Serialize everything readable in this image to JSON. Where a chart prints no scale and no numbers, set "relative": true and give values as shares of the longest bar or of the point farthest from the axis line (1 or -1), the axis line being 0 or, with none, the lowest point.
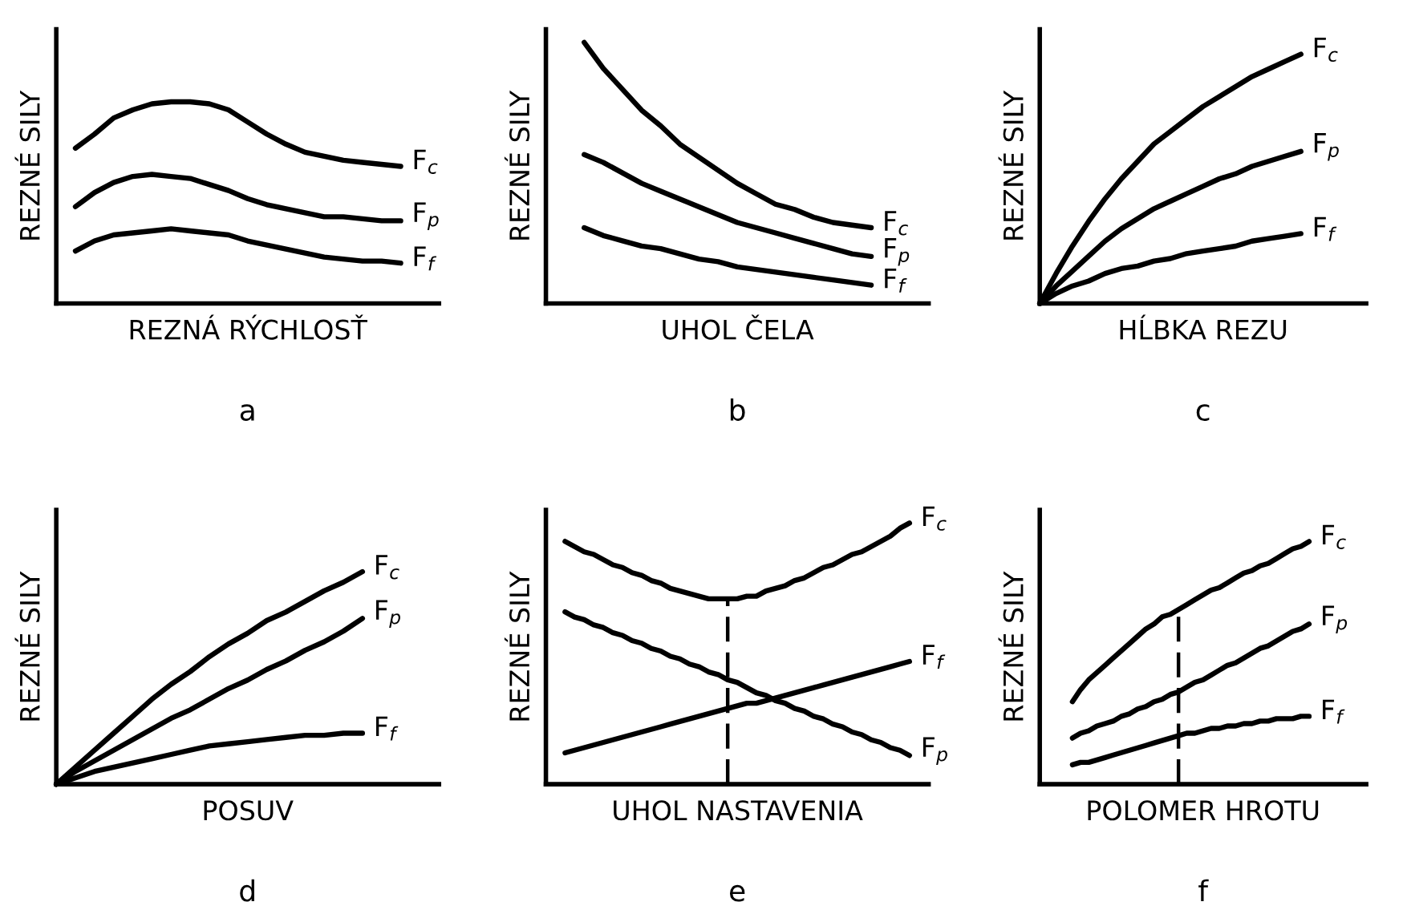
{
  "chart_data": [
    {
      "type": "line",
      "title": "a",
      "xlabel": "REZNÁ RÝCHLOSŤ",
      "ylabel": "REZNÉ SILY",
      "relative": true,
      "categories": [
        null,
        null,
        null,
        null,
        null,
        null,
        null,
        null,
        null,
        null,
        null,
        null,
        null,
        null,
        null,
        null,
        null,
        null,
        null,
        null,
        null
      ],
      "series": [
        {
          "name": "F$_{c}$",
          "color": "#000000",
          "values": [
            null,
            0.77,
            0.84,
            0.92,
            0.96,
            0.99,
            1.0,
            1.0,
            0.99,
            0.96,
            0.9,
            0.84,
            0.79,
            0.75,
            0.73,
            0.71,
            0.7,
            0.69,
            0.68,
            null,
            null
          ]
        },
        {
          "name": "F$_{p}$",
          "color": "#000000",
          "values": [
            null,
            0.48,
            0.55,
            0.6,
            0.63,
            0.64,
            0.63,
            0.62,
            0.59,
            0.56,
            0.52,
            0.49,
            0.47,
            0.45,
            0.43,
            0.43,
            0.42,
            0.41,
            0.41,
            null,
            null
          ]
        },
        {
          "name": "F$_{f}$",
          "color": "#000000",
          "values": [
            null,
            0.26,
            0.31,
            0.34,
            0.35,
            0.36,
            0.37,
            0.36,
            0.35,
            0.34,
            0.31,
            0.29,
            0.27,
            0.25,
            0.23,
            0.22,
            0.21,
            0.21,
            0.2,
            null,
            null
          ]
        }
      ]
    },
    {
      "type": "line",
      "title": "b",
      "xlabel": "UHOL ČELA",
      "ylabel": "REZNÉ SILY",
      "relative": true,
      "categories": [
        null,
        null,
        null,
        null,
        null,
        null,
        null,
        null,
        null,
        null,
        null,
        null,
        null,
        null,
        null,
        null,
        null,
        null,
        null,
        null,
        null
      ],
      "series": [
        {
          "name": "F$_{c}$",
          "color": "#000000",
          "values": [
            null,
            null,
            1.0,
            0.9,
            0.82,
            0.74,
            0.68,
            0.61,
            0.56,
            0.51,
            0.46,
            0.42,
            0.38,
            0.36,
            0.33,
            0.31,
            0.3,
            0.29,
            null,
            null,
            null
          ]
        },
        {
          "name": "F$_{p}$",
          "color": "#000000",
          "values": [
            null,
            null,
            0.57,
            0.54,
            0.5,
            0.46,
            0.43,
            0.4,
            0.37,
            0.34,
            0.31,
            0.29,
            0.27,
            0.25,
            0.23,
            0.21,
            0.19,
            0.18,
            null,
            null,
            null
          ]
        },
        {
          "name": "F$_{f}$",
          "color": "#000000",
          "values": [
            null,
            null,
            0.29,
            0.26,
            0.24,
            0.22,
            0.21,
            0.19,
            0.17,
            0.16,
            0.14,
            0.13,
            0.12,
            0.11,
            0.1,
            0.09,
            0.08,
            0.07,
            null,
            null,
            null
          ]
        }
      ]
    },
    {
      "type": "line",
      "title": "c",
      "xlabel": "HĹBKA REZU",
      "ylabel": "REZNÉ SILY",
      "relative": true,
      "categories": [
        null,
        null,
        null,
        null,
        null,
        null,
        null,
        null,
        null,
        null,
        null,
        null,
        null,
        null,
        null,
        null,
        null,
        null,
        null,
        null,
        null
      ],
      "series": [
        {
          "name": "F$_{c}$",
          "color": "#000000",
          "values": [
            0,
            0.12,
            0.23,
            0.33,
            0.42,
            0.5,
            0.57,
            0.64,
            0.69,
            0.74,
            0.79,
            0.83,
            0.87,
            0.91,
            0.94,
            0.97,
            1.0,
            null,
            null,
            null,
            null
          ]
        },
        {
          "name": "F$_{p}$",
          "color": "#000000",
          "values": [
            0,
            0.07,
            0.13,
            0.19,
            0.25,
            0.3,
            0.34,
            0.38,
            0.41,
            0.44,
            0.47,
            0.5,
            0.52,
            0.55,
            0.57,
            0.59,
            0.61,
            null,
            null,
            null,
            null
          ]
        },
        {
          "name": "F$_{f}$",
          "color": "#000000",
          "values": [
            0,
            0.04,
            0.07,
            0.09,
            0.12,
            0.14,
            0.15,
            0.17,
            0.18,
            0.2,
            0.21,
            0.22,
            0.23,
            0.25,
            0.26,
            0.27,
            0.28,
            null,
            null,
            null,
            null
          ]
        }
      ]
    },
    {
      "type": "line",
      "title": "d",
      "xlabel": "POSUV",
      "ylabel": "REZNÉ SILY",
      "relative": true,
      "categories": [
        null,
        null,
        null,
        null,
        null,
        null,
        null,
        null,
        null,
        null,
        null,
        null,
        null,
        null,
        null,
        null,
        null,
        null,
        null,
        null,
        null
      ],
      "series": [
        {
          "name": "F$_{c}$",
          "color": "#000000",
          "values": [
            0,
            0.08,
            0.16,
            0.24,
            0.32,
            0.4,
            0.47,
            0.53,
            0.6,
            0.66,
            0.71,
            0.77,
            0.81,
            0.86,
            0.91,
            0.95,
            1.0,
            null,
            null,
            null,
            null
          ]
        },
        {
          "name": "F$_{p}$",
          "color": "#000000",
          "values": [
            0,
            0.06,
            0.11,
            0.16,
            0.21,
            0.26,
            0.31,
            0.35,
            0.4,
            0.45,
            0.49,
            0.54,
            0.58,
            0.63,
            0.67,
            0.72,
            0.78,
            null,
            null,
            null,
            null
          ]
        },
        {
          "name": "F$_{f}$",
          "color": "#000000",
          "values": [
            0,
            0.03,
            0.06,
            0.08,
            0.1,
            0.12,
            0.14,
            0.16,
            0.18,
            0.19,
            0.2,
            0.21,
            0.22,
            0.23,
            0.23,
            0.24,
            0.24,
            null,
            null,
            null,
            null
          ]
        }
      ]
    },
    {
      "type": "line",
      "title": "e",
      "xlabel": "UHOL NASTAVENIA",
      "ylabel": "REZNÉ SILY",
      "relative": true,
      "categories": [
        null,
        null,
        null,
        null,
        null,
        null,
        null,
        null,
        null,
        null,
        null,
        null,
        null,
        null,
        null,
        null,
        null,
        null,
        null,
        null,
        null,
        null,
        null,
        null,
        null,
        null,
        null,
        null,
        null,
        null,
        null,
        null,
        null,
        null,
        null,
        null,
        null,
        null,
        null,
        null,
        null
      ],
      "series": [
        {
          "name": "F$_{c}$",
          "color": "#000000",
          "values": [
            null,
            null,
            0.93,
            0.91,
            0.89,
            0.88,
            0.86,
            0.84,
            0.83,
            0.81,
            0.8,
            0.78,
            0.77,
            0.75,
            0.74,
            0.73,
            0.72,
            0.71,
            0.71,
            0.71,
            0.71,
            0.72,
            0.72,
            0.74,
            0.75,
            0.76,
            0.78,
            0.79,
            0.81,
            0.83,
            0.84,
            0.86,
            0.88,
            0.89,
            0.91,
            0.93,
            0.95,
            0.98,
            1.0,
            null,
            null
          ]
        },
        {
          "name": "F$_{f}$",
          "color": "#000000",
          "values": [
            null,
            null,
            0.12,
            0.13,
            0.14,
            0.15,
            0.16,
            0.17,
            0.18,
            0.19,
            0.2,
            0.21,
            0.22,
            0.23,
            0.24,
            0.25,
            0.26,
            0.27,
            0.28,
            0.29,
            0.3,
            0.31,
            0.31,
            0.32,
            0.33,
            0.34,
            0.35,
            0.36,
            0.37,
            0.38,
            0.39,
            0.4,
            0.41,
            0.42,
            0.43,
            0.44,
            0.45,
            0.46,
            0.47,
            null,
            null
          ]
        },
        {
          "name": "F$_{p}$",
          "color": "#000000",
          "values": [
            null,
            null,
            0.66,
            0.64,
            0.63,
            0.61,
            0.6,
            0.58,
            0.57,
            0.55,
            0.54,
            0.52,
            0.51,
            0.49,
            0.48,
            0.46,
            0.45,
            0.43,
            0.42,
            0.4,
            0.39,
            0.37,
            0.35,
            0.34,
            0.32,
            0.31,
            0.29,
            0.28,
            0.26,
            0.25,
            0.23,
            0.22,
            0.2,
            0.19,
            0.17,
            0.16,
            0.14,
            0.13,
            0.11,
            null,
            null
          ]
        }
      ]
    },
    {
      "type": "line",
      "title": "f",
      "xlabel": "POLOMER HROTU",
      "ylabel": "REZNÉ SILY",
      "relative": true,
      "categories": [
        null,
        null,
        null,
        null,
        null,
        null,
        null,
        null,
        null,
        null,
        null,
        null,
        null,
        null,
        null,
        null,
        null,
        null,
        null,
        null,
        null,
        null,
        null,
        null,
        null,
        null,
        null,
        null,
        null,
        null,
        null,
        null,
        null,
        null,
        null,
        null,
        null,
        null,
        null,
        null,
        null
      ],
      "series": [
        {
          "name": "F$_{c}$",
          "color": "#000000",
          "values": [
            null,
            null,
            null,
            null,
            0.34,
            0.39,
            0.43,
            0.46,
            0.49,
            0.52,
            0.55,
            0.58,
            0.61,
            0.64,
            0.66,
            0.69,
            0.7,
            0.72,
            0.74,
            0.76,
            0.78,
            0.8,
            0.81,
            0.83,
            0.85,
            0.87,
            0.88,
            0.9,
            0.91,
            0.93,
            0.95,
            0.97,
            0.98,
            1.0,
            null,
            null,
            null,
            null,
            null,
            null,
            null
          ]
        },
        {
          "name": "F$_{p}$",
          "color": "#000000",
          "values": [
            null,
            null,
            null,
            null,
            0.19,
            0.21,
            0.22,
            0.24,
            0.25,
            0.26,
            0.28,
            0.29,
            0.31,
            0.32,
            0.34,
            0.35,
            0.37,
            0.38,
            0.4,
            0.42,
            0.43,
            0.45,
            0.47,
            0.49,
            0.5,
            0.52,
            0.54,
            0.56,
            0.57,
            0.59,
            0.61,
            0.63,
            0.64,
            0.66,
            null,
            null,
            null,
            null,
            null,
            null,
            null
          ]
        },
        {
          "name": "F$_{f}$",
          "color": "#000000",
          "values": [
            null,
            null,
            null,
            null,
            0.08,
            0.09,
            0.09,
            0.1,
            0.11,
            0.12,
            0.13,
            0.14,
            0.15,
            0.16,
            0.17,
            0.18,
            0.19,
            0.2,
            0.21,
            0.21,
            0.22,
            0.23,
            0.23,
            0.24,
            0.24,
            0.25,
            0.25,
            0.26,
            0.26,
            0.27,
            0.27,
            0.27,
            0.28,
            0.28,
            null,
            null,
            null,
            null,
            null,
            null,
            null
          ]
        }
      ]
    }
  ]
}
